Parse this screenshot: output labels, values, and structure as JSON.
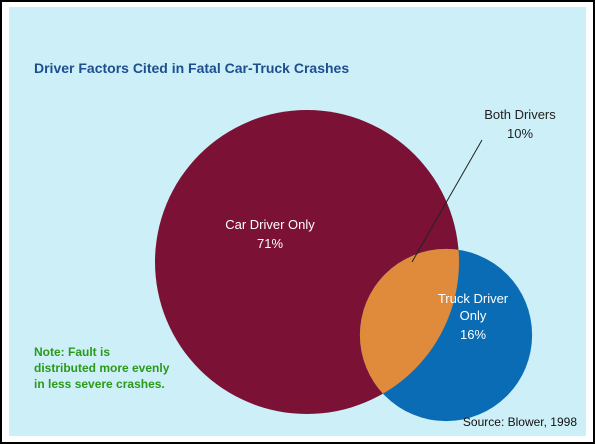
{
  "chart_data": {
    "type": "venn",
    "title": "Driver Factors Cited in Fatal Car-Truck Crashes",
    "categories": [
      "Car Driver Only",
      "Both Drivers",
      "Truck Driver Only"
    ],
    "values": [
      71,
      10,
      16
    ],
    "value_labels": [
      "71%",
      "10%",
      "16%"
    ],
    "colors": [
      "#7b1235",
      "#e08b3b",
      "#0a6cb5"
    ],
    "note": "Note:  Fault is distributed more evenly in less severe crashes.",
    "source": "Source: Blower, 1998"
  }
}
